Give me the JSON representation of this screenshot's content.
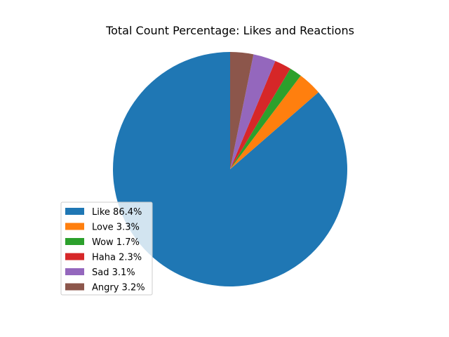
{
  "chart_data": {
    "type": "pie",
    "title": "Total Count Percentage: Likes and Reactions",
    "start_angle_deg": 90,
    "direction": "counterclockwise",
    "slices": [
      {
        "label": "Like",
        "value": 86.4,
        "legend_label": "Like 86.4%",
        "color": "#1f77b4"
      },
      {
        "label": "Love",
        "value": 3.3,
        "legend_label": "Love 3.3%",
        "color": "#ff7f0e"
      },
      {
        "label": "Wow",
        "value": 1.7,
        "legend_label": "Wow 1.7%",
        "color": "#2ca02c"
      },
      {
        "label": "Haha",
        "value": 2.3,
        "legend_label": "Haha 2.3%",
        "color": "#d62728"
      },
      {
        "label": "Sad",
        "value": 3.1,
        "legend_label": "Sad 3.1%",
        "color": "#9467bd"
      },
      {
        "label": "Angry",
        "value": 3.2,
        "legend_label": "Angry 3.2%",
        "color": "#8c564b"
      }
    ],
    "legend_position": "lower-left"
  }
}
